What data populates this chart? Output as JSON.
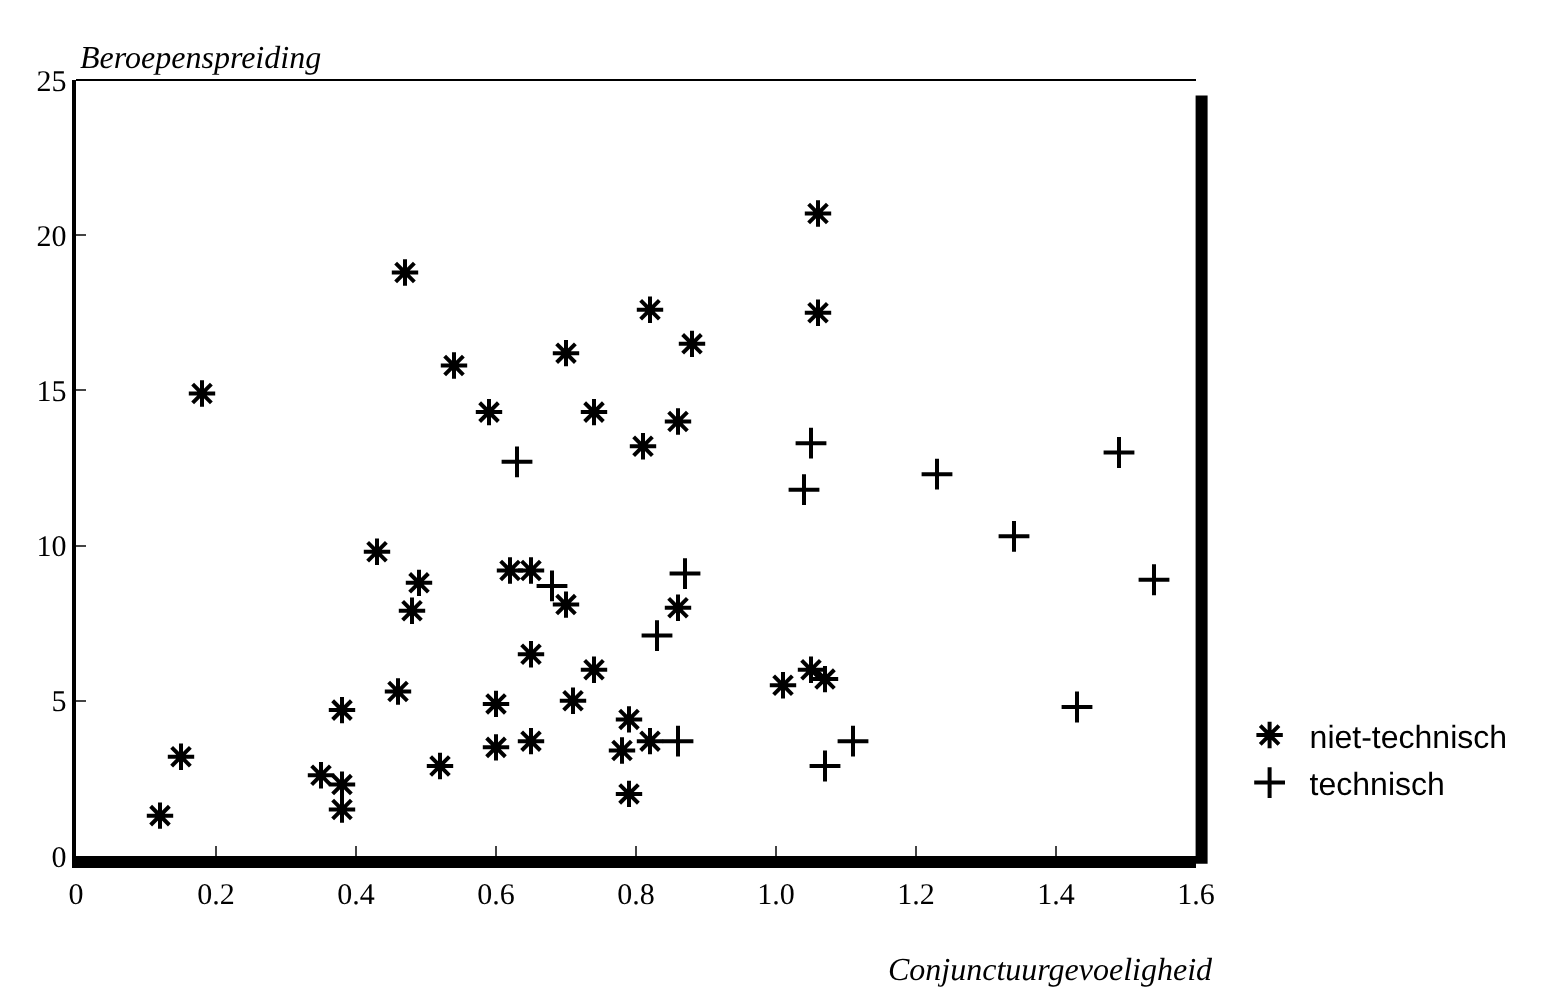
{
  "chart_data": {
    "type": "scatter",
    "xlabel": "Conjunctuurgevoeligheid",
    "ylabel": "Beroepenspreiding",
    "xlim": [
      0,
      1.6
    ],
    "ylim": [
      0,
      25
    ],
    "xticks": [
      0,
      0.2,
      0.4,
      0.6,
      0.8,
      {
        "value": 1,
        "label": "1.0"
      },
      1.2,
      1.4,
      1.6
    ],
    "yticks": [
      0,
      5,
      10,
      15,
      20,
      25
    ],
    "legend": "bottom right",
    "series": [
      {
        "name": "niet-technisch",
        "color": "#000000",
        "x": [
          0.12,
          0.15,
          0.18,
          0.35,
          0.38,
          0.38,
          0.38,
          0.43,
          0.49,
          0.48,
          0.46,
          0.52,
          0.54,
          0.59,
          0.6,
          0.6,
          0.62,
          0.65,
          0.7,
          0.65,
          0.65,
          0.71,
          0.7,
          0.74,
          0.74,
          0.47,
          0.82,
          1.06,
          0.88,
          0.86,
          0.81,
          0.86,
          0.79,
          0.78,
          0.82,
          0.79,
          1.01,
          1.05,
          1.07,
          1.06
        ],
        "values": [
          1.3,
          3.2,
          14.9,
          2.6,
          2.3,
          1.5,
          4.7,
          9.8,
          8.8,
          7.9,
          5.3,
          2.9,
          15.8,
          14.3,
          4.9,
          3.5,
          9.2,
          9.2,
          8.1,
          6.5,
          3.7,
          5.0,
          16.2,
          14.3,
          6.0,
          18.8,
          17.6,
          17.5,
          16.5,
          14.0,
          13.2,
          8.0,
          4.4,
          3.4,
          3.7,
          2.0,
          5.5,
          6.0,
          5.7,
          20.7
        ]
      },
      {
        "name": "technisch",
        "color": "#000000",
        "marker": "cross",
        "x": [
          0.63,
          0.68,
          1.05,
          1.04,
          1.23,
          1.49,
          1.34,
          1.54,
          0.87,
          0.83,
          0.86,
          1.11,
          1.07,
          1.43
        ],
        "values": [
          12.7,
          8.7,
          13.3,
          11.8,
          12.3,
          13.0,
          10.3,
          8.9,
          9.1,
          7.1,
          3.7,
          3.7,
          2.9,
          4.8
        ]
      }
    ]
  }
}
